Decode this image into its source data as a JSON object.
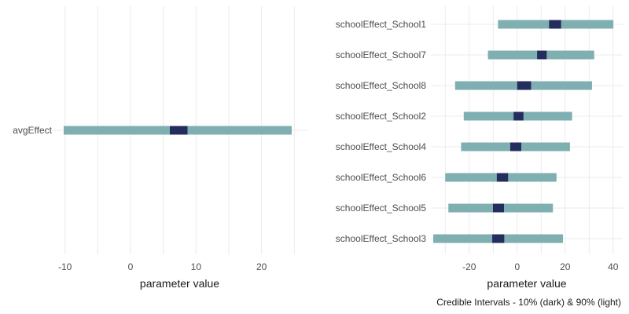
{
  "chart_data": [
    {
      "type": "interval",
      "xlabel": "parameter value",
      "xlim": [
        -12,
        27
      ],
      "xticks": [
        -10,
        0,
        10,
        20
      ],
      "grid": true,
      "params": [
        {
          "name": "avgEffect",
          "lo90": -10.2,
          "hi90": 24.6,
          "lo10": 6.0,
          "hi10": 8.7
        }
      ]
    },
    {
      "type": "interval",
      "xlabel": "parameter value",
      "xlim": [
        -36,
        44
      ],
      "xticks": [
        -20,
        0,
        20,
        40
      ],
      "grid": true,
      "params": [
        {
          "name": "schoolEffect_School1",
          "lo90": -8.0,
          "hi90": 40.1,
          "lo10": 13.3,
          "hi10": 18.3
        },
        {
          "name": "schoolEffect_School7",
          "lo90": -12.2,
          "hi90": 32.1,
          "lo10": 8.3,
          "hi10": 12.3
        },
        {
          "name": "schoolEffect_School8",
          "lo90": -25.9,
          "hi90": 31.2,
          "lo10": 0.0,
          "hi10": 5.8
        },
        {
          "name": "schoolEffect_School2",
          "lo90": -22.3,
          "hi90": 22.9,
          "lo10": -1.5,
          "hi10": 2.6
        },
        {
          "name": "schoolEffect_School4",
          "lo90": -23.4,
          "hi90": 22.0,
          "lo10": -2.9,
          "hi10": 1.7
        },
        {
          "name": "schoolEffect_School6",
          "lo90": -30.0,
          "hi90": 16.4,
          "lo10": -8.5,
          "hi10": -3.8
        },
        {
          "name": "schoolEffect_School5",
          "lo90": -28.7,
          "hi90": 14.9,
          "lo10": -10.1,
          "hi10": -5.5
        },
        {
          "name": "schoolEffect_School3",
          "lo90": -35.0,
          "hi90": 19.1,
          "lo10": -10.4,
          "hi10": -5.4
        }
      ]
    }
  ],
  "caption": "Credible Intervals - 10% (dark) & 90% (light)",
  "colors": {
    "light": "#7fafb0",
    "dark": "#232d5e",
    "grid": "#ebebeb"
  }
}
